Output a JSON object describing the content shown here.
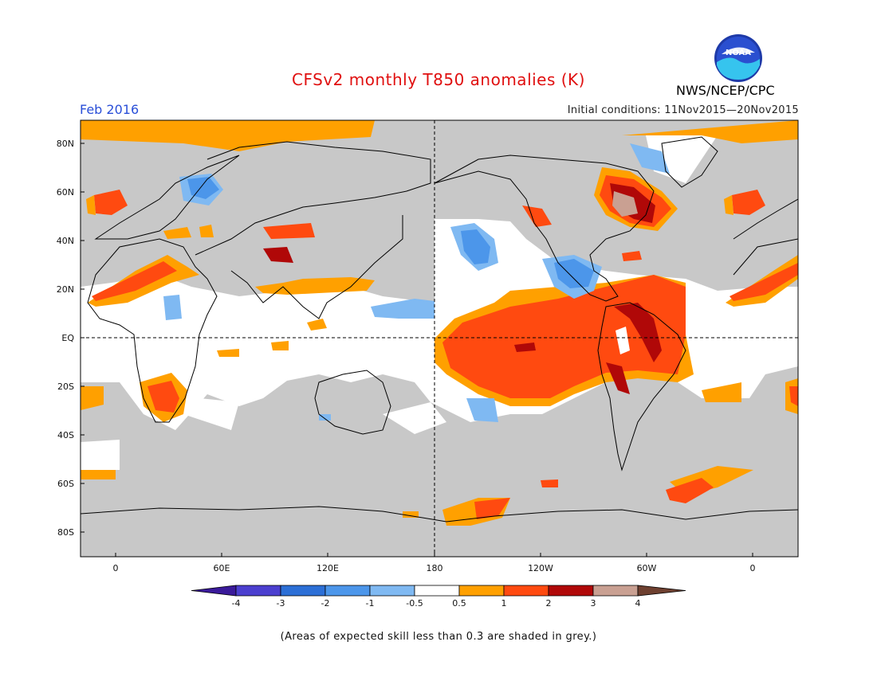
{
  "header": {
    "title": "CFSv2 monthly T850 anomalies (K)",
    "valid_month": "Feb 2016",
    "initial_conditions": "Initial conditions: 11Nov2015—20Nov2015",
    "organization": "NWS/NCEP/CPC",
    "logo_text": "NOAA"
  },
  "map": {
    "lat_ticks": [
      "80N",
      "60N",
      "40N",
      "20N",
      "EQ",
      "20S",
      "40S",
      "60S",
      "80S"
    ],
    "lon_ticks": [
      "0",
      "60E",
      "120E",
      "180",
      "120W",
      "60W",
      "0"
    ],
    "colors": {
      "ocean": "#c8c8c8",
      "low_skill": "#c8c8c8",
      "neutral": "#ffffff",
      "coast": "#000000"
    }
  },
  "colorbar": {
    "labels": [
      "-4",
      "-3",
      "-2",
      "-1",
      "-0.5",
      "0.5",
      "1",
      "2",
      "3",
      "4"
    ],
    "colors": [
      "#3a1a9a",
      "#4b3fcf",
      "#2c6fd6",
      "#4c96ea",
      "#7fb9f2",
      "#ffffff",
      "#ffa000",
      "#ff4a10",
      "#b00808",
      "#c9a092",
      "#6e4030"
    ]
  },
  "footer": {
    "note": "(Areas of expected skill less than 0.3 are shaded in grey.)"
  }
}
